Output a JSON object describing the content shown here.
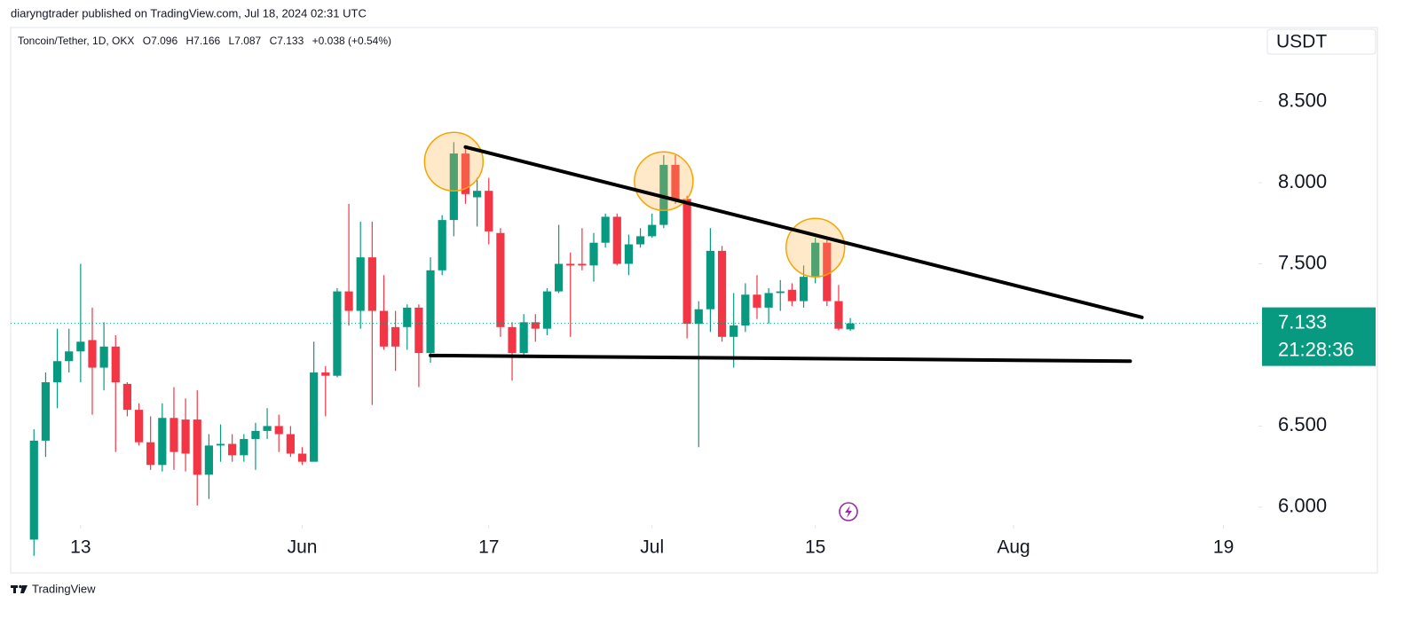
{
  "header": "diaryngtrader published on TradingView.com, Jul 18, 2024 02:31 UTC",
  "footer": "TradingView",
  "chart_data": {
    "type": "candlestick",
    "title": "Toncoin/Tether, 1D, OKX",
    "ohlc_letters": [
      "O",
      "H",
      "L",
      "C"
    ],
    "change": "+0.038 (+0.54%)",
    "currency": "USDT",
    "last_price": 7.133,
    "countdown": "21:28:36",
    "up_color": "#089981",
    "down_color": "#f23645",
    "grid": false,
    "x": [
      "2024-05-09",
      "2024-05-10",
      "2024-05-11",
      "2024-05-12",
      "2024-05-13",
      "2024-05-14",
      "2024-05-15",
      "2024-05-16",
      "2024-05-17",
      "2024-05-18",
      "2024-05-19",
      "2024-05-20",
      "2024-05-21",
      "2024-05-22",
      "2024-05-23",
      "2024-05-24",
      "2024-05-25",
      "2024-05-26",
      "2024-05-27",
      "2024-05-28",
      "2024-05-29",
      "2024-05-30",
      "2024-05-31",
      "2024-06-01",
      "2024-06-02",
      "2024-06-03",
      "2024-06-04",
      "2024-06-05",
      "2024-06-06",
      "2024-06-07",
      "2024-06-08",
      "2024-06-09",
      "2024-06-10",
      "2024-06-11",
      "2024-06-12",
      "2024-06-13",
      "2024-06-14",
      "2024-06-15",
      "2024-06-16",
      "2024-06-17",
      "2024-06-18",
      "2024-06-19",
      "2024-06-20",
      "2024-06-21",
      "2024-06-22",
      "2024-06-23",
      "2024-06-24",
      "2024-06-25",
      "2024-06-26",
      "2024-06-27",
      "2024-06-28",
      "2024-06-29",
      "2024-06-30",
      "2024-07-01",
      "2024-07-02",
      "2024-07-03",
      "2024-07-04",
      "2024-07-05",
      "2024-07-06",
      "2024-07-07",
      "2024-07-08",
      "2024-07-09",
      "2024-07-10",
      "2024-07-11",
      "2024-07-12",
      "2024-07-13",
      "2024-07-14",
      "2024-07-15",
      "2024-07-16",
      "2024-07-17",
      "2024-07-18"
    ],
    "open": [
      5.8,
      6.41,
      6.77,
      6.9,
      6.96,
      7.03,
      6.86,
      6.99,
      6.76,
      6.6,
      6.4,
      6.26,
      6.55,
      6.54,
      6.54,
      6.2,
      6.38,
      6.39,
      6.32,
      6.42,
      6.47,
      6.5,
      6.45,
      6.33,
      6.28,
      6.83,
      6.81,
      7.33,
      7.21,
      7.54,
      7.21,
      7.11,
      7.11,
      7.23,
      6.95,
      7.46,
      7.77,
      8.18,
      7.91,
      7.95,
      7.69,
      7.11,
      6.95,
      7.14,
      7.1,
      7.33,
      7.5,
      7.5,
      7.49,
      7.63,
      7.79,
      7.5,
      7.62,
      7.67,
      7.74,
      8.11,
      7.9,
      7.13,
      7.22,
      7.58,
      7.05,
      7.12,
      7.31,
      7.23,
      7.32,
      7.34,
      7.27,
      7.42,
      7.63,
      7.27,
      7.096
    ],
    "high": [
      6.48,
      6.83,
      7.1,
      7.1,
      7.5,
      7.23,
      7.14,
      7.06,
      6.77,
      6.64,
      6.56,
      6.64,
      6.74,
      6.67,
      6.72,
      6.45,
      6.51,
      6.45,
      6.45,
      6.52,
      6.61,
      6.57,
      6.5,
      6.37,
      7.02,
      6.87,
      7.35,
      7.87,
      7.76,
      7.76,
      7.43,
      7.21,
      7.25,
      7.25,
      7.54,
      7.8,
      8.25,
      8.22,
      8.03,
      8.03,
      7.72,
      7.14,
      7.19,
      7.19,
      7.35,
      7.74,
      7.57,
      7.72,
      7.69,
      7.81,
      7.81,
      7.68,
      7.72,
      7.81,
      8.17,
      8.17,
      7.92,
      7.27,
      7.72,
      7.61,
      7.32,
      7.38,
      7.43,
      7.35,
      7.4,
      7.38,
      7.49,
      7.66,
      7.66,
      7.37,
      7.166
    ],
    "low": [
      5.7,
      6.31,
      6.61,
      6.83,
      6.77,
      6.57,
      6.72,
      6.34,
      6.56,
      6.38,
      6.23,
      6.22,
      6.23,
      6.22,
      6.01,
      6.05,
      6.28,
      6.28,
      6.28,
      6.23,
      6.42,
      6.34,
      6.31,
      6.26,
      6.28,
      6.56,
      6.8,
      7.12,
      7.1,
      6.63,
      6.97,
      6.84,
      6.97,
      6.74,
      6.89,
      7.43,
      7.67,
      7.87,
      7.73,
      7.62,
      7.05,
      6.78,
      6.92,
      7.02,
      7.06,
      7.32,
      7.05,
      7.46,
      7.39,
      7.6,
      7.49,
      7.43,
      7.6,
      7.66,
      7.72,
      7.87,
      7.04,
      6.37,
      7.08,
      7.02,
      6.86,
      7.08,
      7.16,
      7.13,
      7.21,
      7.24,
      7.23,
      7.38,
      7.24,
      7.09,
      7.087
    ],
    "close": [
      6.41,
      6.77,
      6.9,
      6.96,
      7.02,
      6.86,
      6.99,
      6.77,
      6.6,
      6.4,
      6.26,
      6.55,
      6.34,
      6.33,
      6.2,
      6.38,
      6.39,
      6.32,
      6.42,
      6.47,
      6.5,
      6.45,
      6.33,
      6.28,
      6.83,
      6.81,
      7.33,
      7.21,
      7.54,
      7.21,
      6.99,
      6.99,
      7.23,
      6.95,
      7.46,
      7.77,
      8.18,
      7.93,
      7.95,
      7.7,
      7.11,
      6.95,
      7.14,
      7.1,
      7.33,
      7.5,
      7.49,
      7.49,
      7.63,
      7.79,
      7.5,
      7.62,
      7.67,
      7.74,
      8.11,
      7.9,
      7.13,
      7.22,
      7.58,
      7.05,
      7.12,
      7.31,
      7.23,
      7.32,
      7.33,
      7.27,
      7.42,
      7.63,
      7.27,
      7.1,
      7.133
    ],
    "xlim": [
      "2024-05-07",
      "2024-08-22"
    ],
    "ylim": [
      5.89,
      8.935
    ],
    "xticks": [
      {
        "value": "2024-05-13",
        "label": "13"
      },
      {
        "value": "2024-06-01",
        "label": "Jun"
      },
      {
        "value": "2024-06-17",
        "label": "17"
      },
      {
        "value": "2024-07-01",
        "label": "Jul"
      },
      {
        "value": "2024-07-15",
        "label": "15"
      },
      {
        "value": "2024-08-01",
        "label": "Aug"
      },
      {
        "value": "2024-08-19",
        "label": "19"
      }
    ],
    "yticks": [
      {
        "value": 6,
        "label": "6.000"
      },
      {
        "value": 6.5,
        "label": "6.500"
      },
      {
        "value": 7.5,
        "label": "7.500"
      },
      {
        "value": 8,
        "label": "8.000"
      },
      {
        "value": 8.5,
        "label": "8.500"
      }
    ],
    "trendlines": [
      {
        "points": [
          [
            "2024-06-15",
            8.22
          ],
          [
            "2024-08-12",
            7.17
          ]
        ]
      },
      {
        "points": [
          [
            "2024-06-12",
            6.935
          ],
          [
            "2024-08-11",
            6.9
          ]
        ]
      }
    ],
    "highlights": [
      [
        "2024-06-14",
        8.13
      ],
      [
        "2024-07-02",
        8.01
      ],
      [
        "2024-07-15",
        7.6
      ]
    ]
  }
}
